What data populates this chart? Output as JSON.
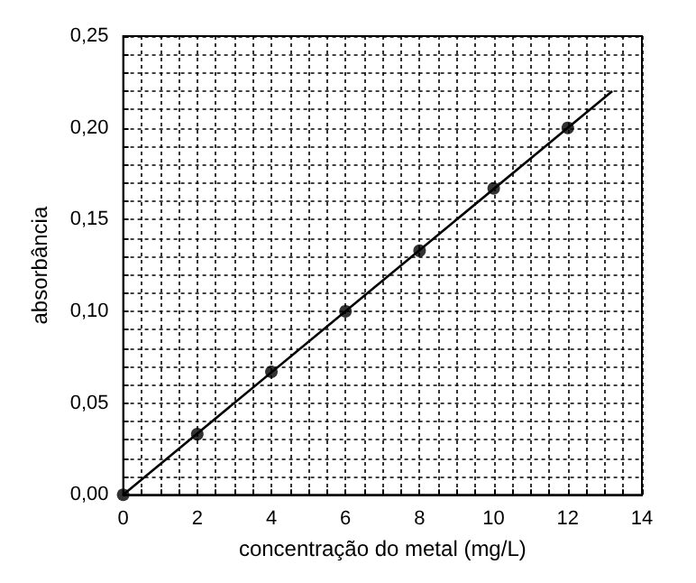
{
  "chart_data": {
    "type": "scatter",
    "xlabel": "concentração do metal (mg/L)",
    "ylabel": "absorbância",
    "xlim": [
      0,
      14
    ],
    "ylim": [
      0,
      0.25
    ],
    "xticks": [
      0,
      {
        "value": 0.5,
        "label": null
      },
      {
        "value": 1,
        "label": null
      },
      {
        "value": 1.5,
        "label": null
      },
      2,
      {
        "value": 2.5,
        "label": null
      },
      {
        "value": 3,
        "label": null
      },
      {
        "value": 3.5,
        "label": null
      },
      4,
      {
        "value": 4.5,
        "label": null
      },
      {
        "value": 5,
        "label": null
      },
      {
        "value": 5.5,
        "label": null
      },
      6,
      {
        "value": 6.5,
        "label": null
      },
      {
        "value": 7,
        "label": null
      },
      {
        "value": 7.5,
        "label": null
      },
      8,
      {
        "value": 8.5,
        "label": null
      },
      {
        "value": 9,
        "label": null
      },
      {
        "value": 9.5,
        "label": null
      },
      10,
      {
        "value": 10.5,
        "label": null
      },
      {
        "value": 11,
        "label": null
      },
      {
        "value": 11.5,
        "label": null
      },
      12,
      {
        "value": 12.5,
        "label": null
      },
      {
        "value": 13,
        "label": null
      },
      {
        "value": 13.5,
        "label": null
      },
      14
    ],
    "yticks": [
      {
        "value": 0,
        "label": "0,00"
      },
      {
        "value": 0.01,
        "label": null
      },
      {
        "value": 0.02,
        "label": null
      },
      {
        "value": 0.03,
        "label": null
      },
      {
        "value": 0.04,
        "label": null
      },
      {
        "value": 0.05,
        "label": "0,05"
      },
      {
        "value": 0.06,
        "label": null
      },
      {
        "value": 0.07,
        "label": null
      },
      {
        "value": 0.08,
        "label": null
      },
      {
        "value": 0.09,
        "label": null
      },
      {
        "value": 0.1,
        "label": "0,10"
      },
      {
        "value": 0.11,
        "label": null
      },
      {
        "value": 0.12,
        "label": null
      },
      {
        "value": 0.13,
        "label": null
      },
      {
        "value": 0.14,
        "label": null
      },
      {
        "value": 0.15,
        "label": "0,15"
      },
      {
        "value": 0.16,
        "label": null
      },
      {
        "value": 0.17,
        "label": null
      },
      {
        "value": 0.18,
        "label": null
      },
      {
        "value": 0.19,
        "label": null
      },
      {
        "value": 0.2,
        "label": "0,20"
      },
      {
        "value": 0.21,
        "label": null
      },
      {
        "value": 0.22,
        "label": null
      },
      {
        "value": 0.23,
        "label": null
      },
      {
        "value": 0.24,
        "label": null
      },
      {
        "value": 0.25,
        "label": "0,25"
      }
    ],
    "grid": true,
    "marker": "circle",
    "series": [
      {
        "color": "#000000",
        "x": [
          0,
          2,
          4,
          6,
          8,
          10,
          12
        ],
        "values": [
          0,
          0.033,
          0.067,
          0.1,
          0.133,
          0.167,
          0.2
        ]
      },
      {
        "type": "line",
        "color": "#000000",
        "marker": "none",
        "x": [
          0,
          13.2
        ],
        "values": [
          0,
          0.22
        ]
      }
    ]
  }
}
